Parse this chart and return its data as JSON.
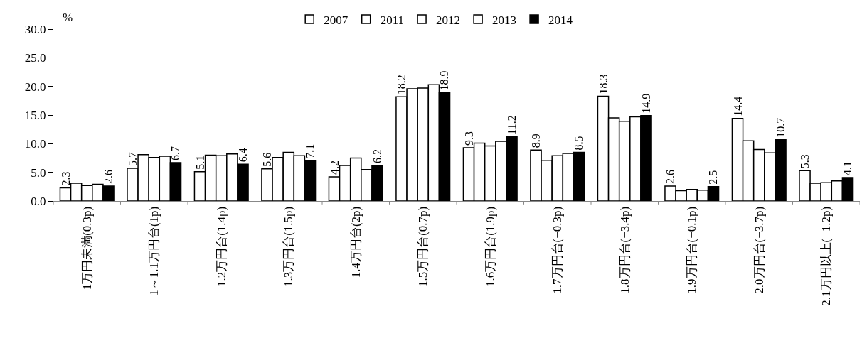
{
  "chart_data": {
    "type": "bar",
    "ylabel": "%",
    "categories": [
      "1万円未満(0.3p)",
      "1～1.1万円台(1p)",
      "1.2万円台(1.4p)",
      "1.3万円台(1.5p)",
      "1.4万円台(2p)",
      "1.5万円台(0.7p)",
      "1.6万円台(1.9p)",
      "1.7万円台(−0.3p)",
      "1.8万円台(−3.4p)",
      "1.9万円台(−0.1p)",
      "2.0万円台(−3.7p)",
      "2.1万円以上(−1.2p)"
    ],
    "series": [
      {
        "name": "2007",
        "color": "#ffffff",
        "values": [
          2.3,
          5.7,
          5.1,
          5.6,
          4.2,
          18.2,
          9.3,
          8.9,
          18.3,
          2.6,
          14.4,
          5.3
        ],
        "value_labels": [
          "2.3",
          "5.7",
          "5.1",
          "5.6",
          "4.2",
          "18.2",
          "9.3",
          "8.9",
          "18.3",
          "2.6",
          "14.4",
          "5.3"
        ]
      },
      {
        "name": "2011",
        "color": "#ffffff",
        "values": [
          3.1,
          8.1,
          8.0,
          7.6,
          6.2,
          19.6,
          10.1,
          7.1,
          14.5,
          1.8,
          10.5,
          3.1
        ]
      },
      {
        "name": "2012",
        "color": "#ffffff",
        "values": [
          2.7,
          7.6,
          7.9,
          8.5,
          7.5,
          19.7,
          9.6,
          7.9,
          13.9,
          2.0,
          9.0,
          3.2
        ]
      },
      {
        "name": "2013",
        "color": "#ffffff",
        "values": [
          2.9,
          7.8,
          8.2,
          7.9,
          5.5,
          20.3,
          10.4,
          8.3,
          14.7,
          1.9,
          8.4,
          3.5
        ]
      },
      {
        "name": "2014",
        "color": "#000000",
        "values": [
          2.6,
          6.7,
          6.4,
          7.1,
          6.2,
          18.9,
          11.2,
          8.5,
          14.9,
          2.5,
          10.7,
          4.1
        ],
        "value_labels": [
          "2.6",
          "6.7",
          "6.4",
          "7.1",
          "6.2",
          "18.9",
          "11.2",
          "8.5",
          "14.9",
          "2.5",
          "10.7",
          "4.1"
        ]
      }
    ],
    "ylim": [
      0,
      30
    ],
    "yticks": [
      {
        "value": 0,
        "label": "0.0"
      },
      {
        "value": 5,
        "label": "5.0"
      },
      {
        "value": 10,
        "label": "10.0"
      },
      {
        "value": 15,
        "label": "15.0"
      },
      {
        "value": 20,
        "label": "20.0"
      },
      {
        "value": 25,
        "label": "25.0"
      },
      {
        "value": 30,
        "label": "30.0"
      }
    ],
    "grid": false,
    "legend": "top"
  }
}
